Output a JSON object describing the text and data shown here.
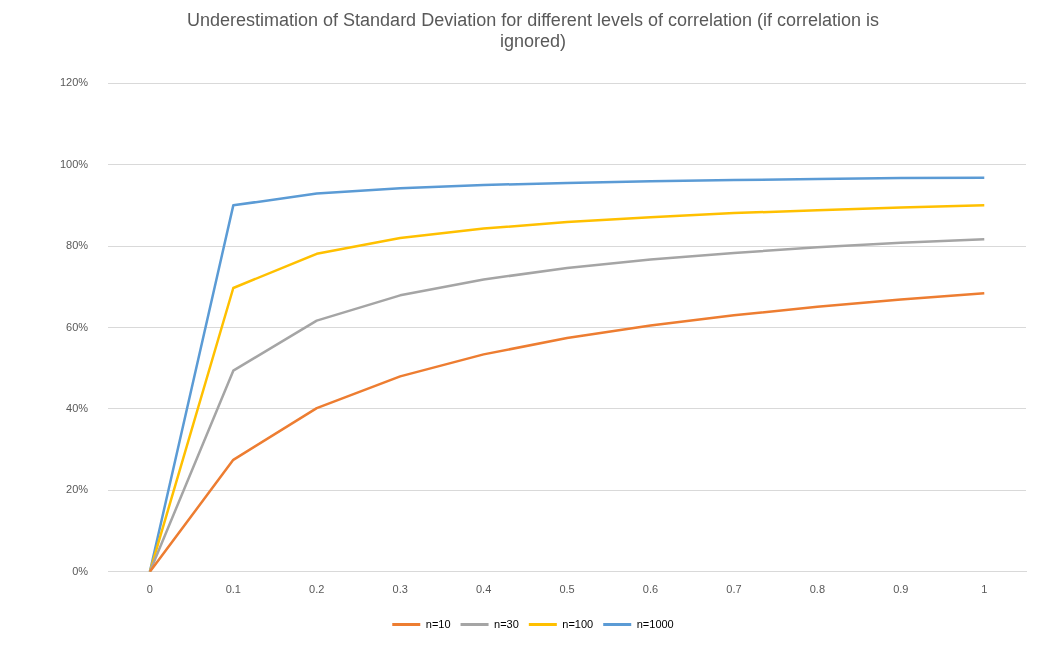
{
  "chart_data": {
    "type": "line",
    "title": "Underestimation of Standard Deviation for different levels of correlation (if correlation is ignored)",
    "categories": [
      "0",
      "0.1",
      "0.2",
      "0.3",
      "0.4",
      "0.5",
      "0.6",
      "0.7",
      "0.8",
      "0.9",
      "1"
    ],
    "series": [
      {
        "name": "n=10",
        "color": "#ed7d31",
        "values": [
          0,
          27.5,
          40.2,
          48,
          53.4,
          57.4,
          60.5,
          63,
          65.1,
          66.9,
          68.4
        ]
      },
      {
        "name": "n=30",
        "color": "#a5a5a5",
        "values": [
          0,
          49.4,
          61.7,
          67.9,
          71.8,
          74.6,
          76.7,
          78.3,
          79.7,
          80.8,
          81.7
        ]
      },
      {
        "name": "n=100",
        "color": "#ffc000",
        "values": [
          0,
          69.7,
          78.1,
          82,
          84.3,
          85.9,
          87.1,
          88.1,
          88.8,
          89.5,
          90
        ]
      },
      {
        "name": "n=1000",
        "color": "#5b9bd5",
        "values": [
          0,
          90,
          92.9,
          94.2,
          95,
          95.5,
          95.9,
          96.2,
          96.5,
          96.7,
          96.8
        ]
      }
    ],
    "ylim": [
      0,
      120
    ],
    "yticks": [
      {
        "value": 0,
        "label": "0%"
      },
      {
        "value": 20,
        "label": "20%"
      },
      {
        "value": 40,
        "label": "40%"
      },
      {
        "value": 60,
        "label": "60%"
      },
      {
        "value": 80,
        "label": "80%"
      },
      {
        "value": 100,
        "label": "100%"
      },
      {
        "value": 120,
        "label": "120%"
      }
    ],
    "grid": "y",
    "legend": "bottom",
    "marker": "none",
    "line_style": "solid"
  }
}
